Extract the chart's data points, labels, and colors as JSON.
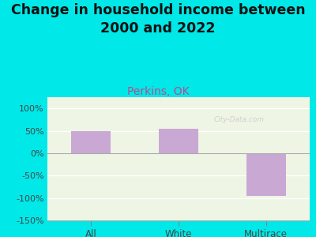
{
  "title": "Change in household income between\n2000 and 2022",
  "subtitle": "Perkins, OK",
  "categories": [
    "All",
    "White",
    "Multirace"
  ],
  "values": [
    50,
    55,
    -95
  ],
  "bar_color": "#c9a8d4",
  "background_color": "#00e8e8",
  "plot_bg_color": "#eef5e4",
  "title_fontsize": 12.5,
  "subtitle_fontsize": 10,
  "subtitle_color": "#b05090",
  "ylim": [
    -150,
    125
  ],
  "yticks": [
    -150,
    -100,
    -50,
    0,
    50,
    100
  ],
  "ytick_labels": [
    "-150%",
    "-100%",
    "-50%",
    "0%",
    "50%",
    "100%"
  ],
  "watermark": "City-Data.com",
  "bar_width": 0.45
}
